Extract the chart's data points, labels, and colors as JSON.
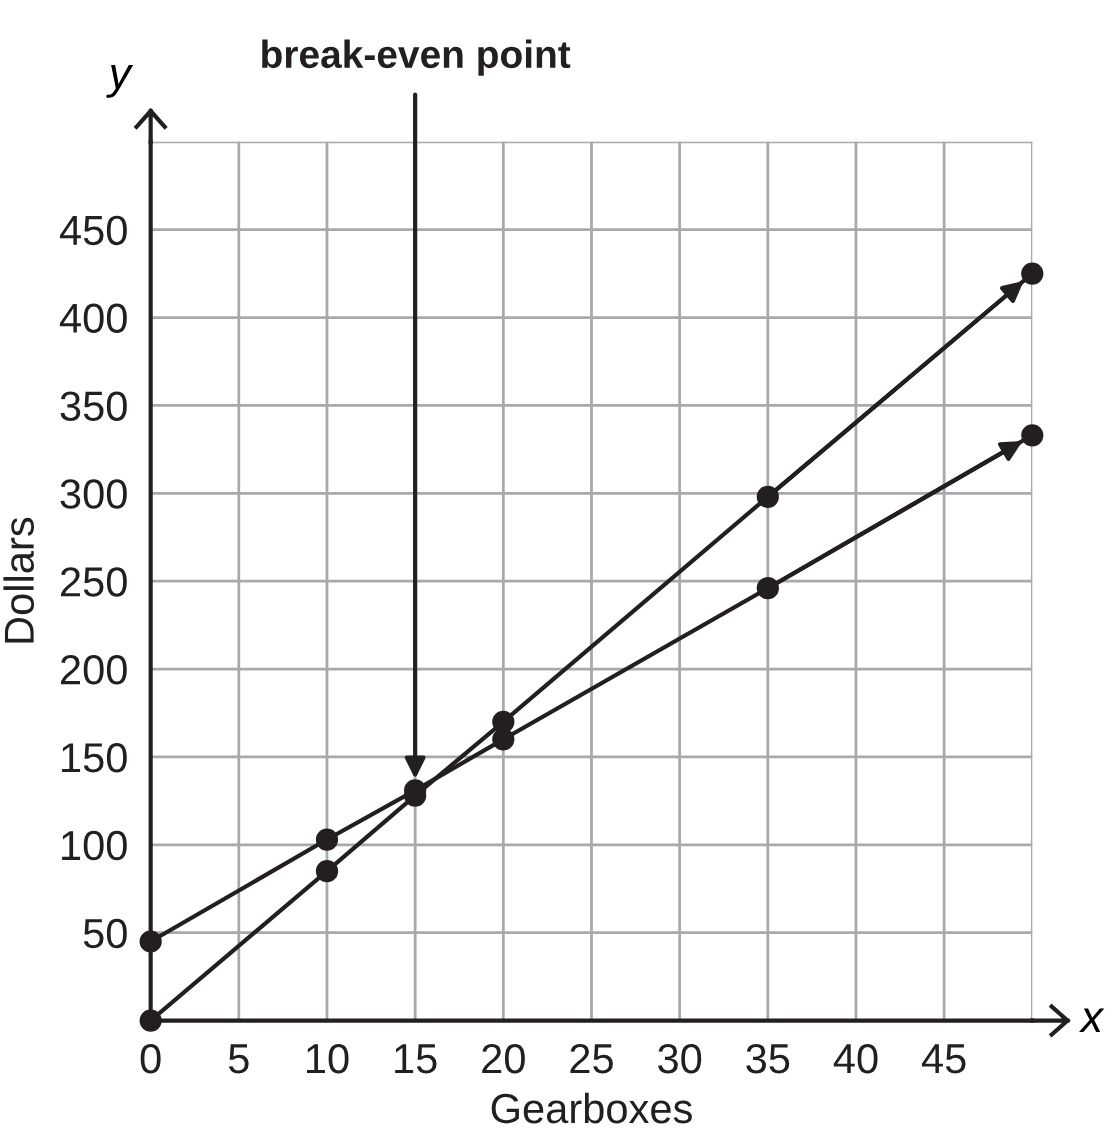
{
  "chart_data": {
    "type": "line",
    "xlabel": "Gearboxes",
    "ylabel": "Dollars",
    "series": [
      {
        "color": "#231f20",
        "x": [
          0,
          10,
          15,
          20,
          35,
          50
        ],
        "values": [
          0,
          85,
          128,
          170,
          298,
          425
        ]
      },
      {
        "color": "#231f20",
        "x": [
          0,
          10,
          15,
          20,
          35,
          50
        ],
        "values": [
          45,
          103,
          131,
          160,
          246,
          333
        ]
      }
    ],
    "marker": "circle",
    "line_style": "solid",
    "grid": true,
    "legend": false,
    "xlim": [
      0,
      50
    ],
    "ylim": [
      0,
      500
    ],
    "xticks": [
      0,
      5,
      10,
      15,
      20,
      25,
      30,
      35,
      40,
      45,
      {
        "value": 50,
        "label": null
      }
    ],
    "yticks": [
      50,
      100,
      150,
      200,
      250,
      300,
      350,
      400,
      450,
      {
        "value": 500,
        "label": null
      }
    ],
    "annotations": [
      "break-even point",
      "x",
      "y"
    ]
  }
}
